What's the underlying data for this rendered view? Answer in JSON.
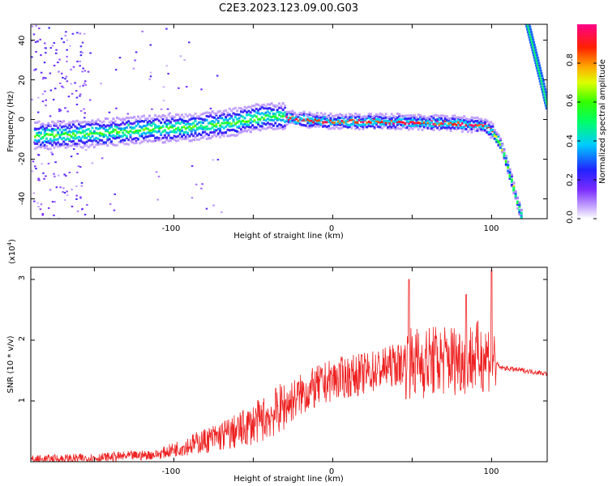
{
  "title": "C2E3.2023.123.09.00.G03",
  "colors": {
    "snr_line": "#ee2222",
    "axis": "#000000",
    "background": "#ffffff"
  },
  "chart_data": [
    {
      "type": "heatmap",
      "xlabel": "Height of straight line (km)",
      "ylabel": "Frequency (Hz)",
      "xlim": [
        -190,
        135
      ],
      "ylim": [
        -50,
        48
      ],
      "x_ticks": [
        "-100",
        "0",
        "100"
      ],
      "y_ticks": [
        "-40",
        "-20",
        "0",
        "20",
        "40"
      ],
      "grid": false,
      "colorbar": {
        "label": "Normalized spectral amplitude",
        "range": [
          0,
          1
        ],
        "ticks": [
          "0.0",
          "0.2",
          "0.4",
          "0.6",
          "0.8"
        ],
        "colormap": "rainbow (white-purple-blue-cyan-green-yellow-orange-red-magenta)"
      },
      "ridge": [
        {
          "x": -180,
          "y": -8
        },
        {
          "x": -150,
          "y": -7
        },
        {
          "x": -120,
          "y": -5
        },
        {
          "x": -90,
          "y": -4
        },
        {
          "x": -60,
          "y": -1
        },
        {
          "x": -40,
          "y": 2
        },
        {
          "x": -30,
          "y": 1
        },
        {
          "x": -20,
          "y": 0
        },
        {
          "x": 0,
          "y": -1
        },
        {
          "x": 40,
          "y": -1
        },
        {
          "x": 80,
          "y": -2
        },
        {
          "x": 95,
          "y": -3
        },
        {
          "x": 100,
          "y": -6
        },
        {
          "x": 105,
          "y": -12
        },
        {
          "x": 110,
          "y": -25
        },
        {
          "x": 115,
          "y": -40
        },
        {
          "x": 119,
          "y": -50
        }
      ],
      "ridge_upper": [
        {
          "x": 122,
          "y": 48
        },
        {
          "x": 126,
          "y": 35
        },
        {
          "x": 130,
          "y": 22
        },
        {
          "x": 135,
          "y": 5
        }
      ]
    },
    {
      "type": "line",
      "xlabel": "Height of straight line (km)",
      "ylabel": "SNR (10 * v/v)",
      "y_multiplier": "(x10",
      "y_multiplier_exp": "4",
      "y_multiplier_close": ")",
      "xlim": [
        -190,
        135
      ],
      "ylim": [
        0,
        3.2
      ],
      "x_ticks": [
        "-100",
        "0",
        "100"
      ],
      "y_ticks": [
        "1",
        "2",
        "3"
      ],
      "grid": false,
      "series": [
        {
          "envelope": [
            {
              "x": -190,
              "y": 0.03
            },
            {
              "x": -150,
              "y": 0.06
            },
            {
              "x": -110,
              "y": 0.12
            },
            {
              "x": -100,
              "y": 0.2
            },
            {
              "x": -80,
              "y": 0.35
            },
            {
              "x": -60,
              "y": 0.5
            },
            {
              "x": -40,
              "y": 0.75
            },
            {
              "x": -20,
              "y": 1.1
            },
            {
              "x": 0,
              "y": 1.35
            },
            {
              "x": 20,
              "y": 1.45
            },
            {
              "x": 40,
              "y": 1.6
            },
            {
              "x": 60,
              "y": 1.65
            },
            {
              "x": 80,
              "y": 1.7
            },
            {
              "x": 100,
              "y": 1.75
            },
            {
              "x": 105,
              "y": 1.55
            },
            {
              "x": 135,
              "y": 1.45
            }
          ],
          "peaks": [
            {
              "x": 48,
              "y": 3.0
            },
            {
              "x": 84,
              "y": 2.75
            },
            {
              "x": 100,
              "y": 3.15
            }
          ]
        }
      ]
    }
  ]
}
